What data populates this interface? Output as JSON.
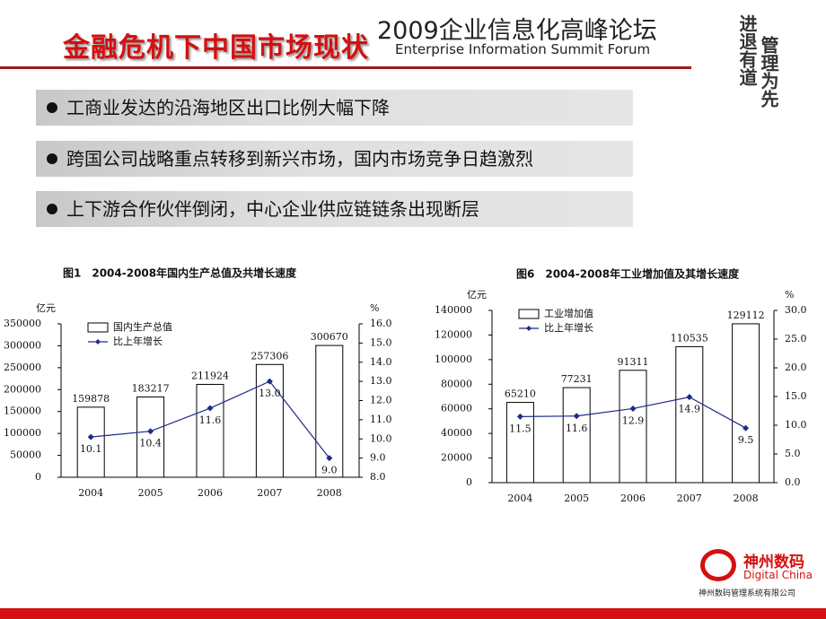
{
  "header": {
    "title": "金融危机下中国市场现状",
    "forum_title": "2009企业信息化高峰论坛",
    "forum_subtitle": "Enterprise Information Summit Forum"
  },
  "slogan": {
    "line1": "进退有道",
    "line2": "管理为先"
  },
  "bullets": [
    "工商业发达的沿海地区出口比例大幅下降",
    "跨国公司战略重点转移到新兴市场，国内市场竞争日趋激烈",
    "上下游合作伙伴倒闭，中心企业供应链链条出现断层"
  ],
  "logo": {
    "name": "神州数码",
    "en": "Digital China",
    "tagline": "神州数码管理系统有限公司"
  },
  "chart_data": [
    {
      "type": "bar",
      "title": "图1　2004-2008年国内生产总值及共增长速度",
      "y_label": "亿元",
      "y2_label": "%",
      "categories": [
        "2004",
        "2005",
        "2006",
        "2007",
        "2008"
      ],
      "series": [
        {
          "name": "国内生产总值",
          "color": "#ffffff",
          "type": "bar",
          "values": [
            159878,
            183217,
            211924,
            257306,
            300670
          ]
        },
        {
          "name": "比上年增长",
          "color": "#1f2a8a",
          "type": "line",
          "axis": "y2",
          "values": [
            10.1,
            10.4,
            11.6,
            13.0,
            9.0
          ],
          "value_labels": [
            "10.1",
            "10.4",
            "11.6",
            "13.0",
            "9.0"
          ]
        }
      ],
      "ylim": [
        0,
        350000
      ],
      "yticks": [
        0,
        50000,
        100000,
        150000,
        200000,
        250000,
        300000,
        350000
      ],
      "y2lim": [
        8,
        16
      ],
      "y2ticks": [
        {
          "value": 8,
          "label": "8.0"
        },
        {
          "value": 9,
          "label": "9.0"
        },
        {
          "value": 10,
          "label": "10.0"
        },
        {
          "value": 11,
          "label": "11.0"
        },
        {
          "value": 12,
          "label": "12.0"
        },
        {
          "value": 13,
          "label": "13.0"
        },
        {
          "value": 14,
          "label": "14.0"
        },
        {
          "value": 15,
          "label": "15.0"
        },
        {
          "value": 16,
          "label": "16.0"
        }
      ]
    },
    {
      "type": "bar",
      "title": "图6　2004-2008年工业增加值及其增长速度",
      "y_label": "亿元",
      "y2_label": "%",
      "categories": [
        "2004",
        "2005",
        "2006",
        "2007",
        "2008"
      ],
      "series": [
        {
          "name": "工业增加值",
          "color": "#ffffff",
          "type": "bar",
          "values": [
            65210,
            77231,
            91311,
            110535,
            129112
          ]
        },
        {
          "name": "比上年增长",
          "color": "#1f2a8a",
          "type": "line",
          "axis": "y2",
          "values": [
            11.5,
            11.6,
            12.9,
            14.9,
            9.5
          ]
        }
      ],
      "ylim": [
        0,
        140000
      ],
      "yticks": [
        0,
        20000,
        40000,
        60000,
        80000,
        100000,
        120000,
        140000
      ],
      "y2lim": [
        0,
        30
      ],
      "y2ticks": [
        {
          "value": 0,
          "label": "0.0"
        },
        {
          "value": 5,
          "label": "5.0"
        },
        {
          "value": 10,
          "label": "10.0"
        },
        {
          "value": 15,
          "label": "15.0"
        },
        {
          "value": 20,
          "label": "20.0"
        },
        {
          "value": 25,
          "label": "25.0"
        },
        {
          "value": 30,
          "label": "30.0"
        }
      ]
    }
  ]
}
